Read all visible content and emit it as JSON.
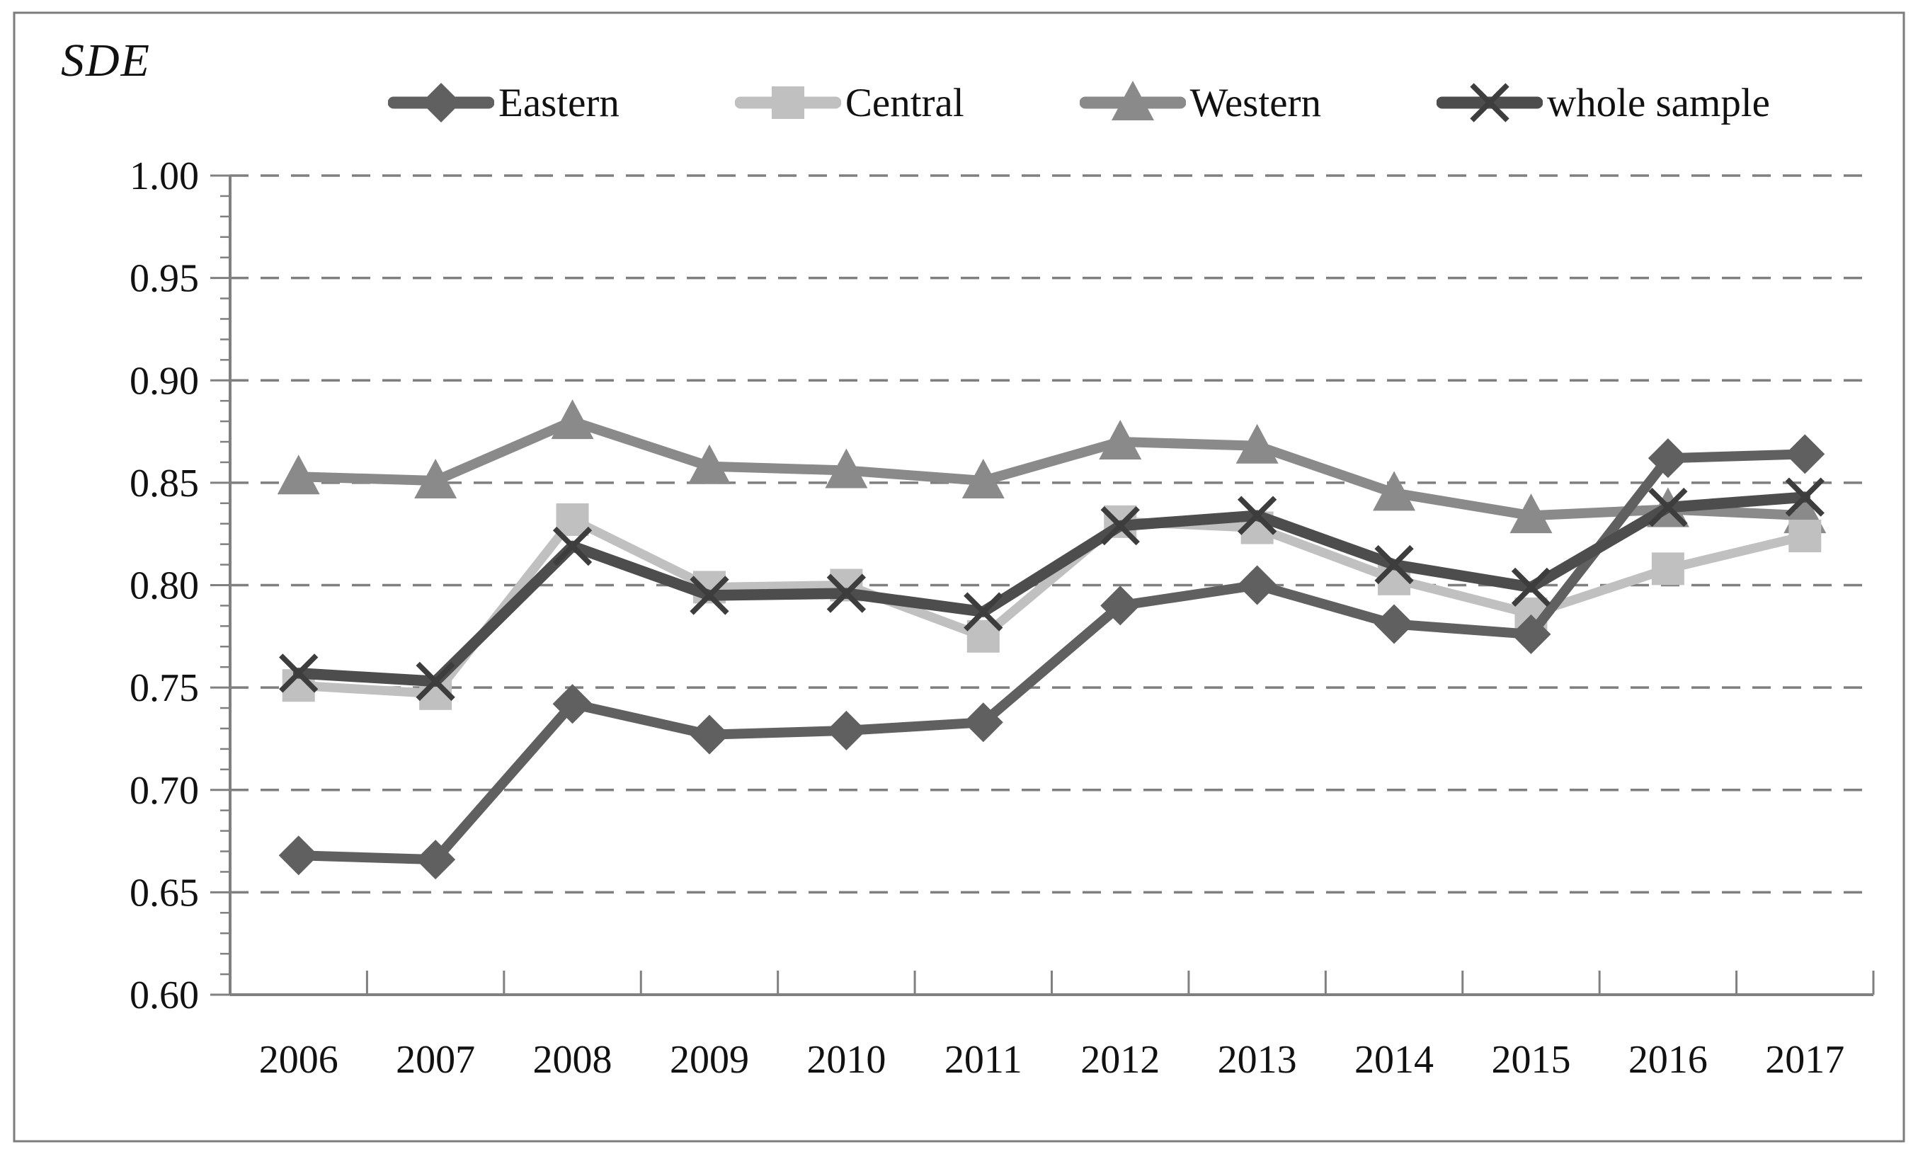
{
  "figure": {
    "axis_label": "SDE",
    "background_color": "#ffffff",
    "border_color": "#7c7c7c",
    "axis_color": "#808080",
    "gridline_color": "#7f7f7f",
    "text_color": "#111111"
  },
  "chart_data": {
    "type": "line",
    "title": "",
    "ylabel": "SDE",
    "xlabel": "",
    "x": [
      "2006",
      "2007",
      "2008",
      "2009",
      "2010",
      "2011",
      "2012",
      "2013",
      "2014",
      "2015",
      "2016",
      "2017"
    ],
    "series": [
      {
        "name": "Eastern",
        "marker": "diamond",
        "color": "#606060",
        "values": [
          0.668,
          0.666,
          0.742,
          0.727,
          0.729,
          0.733,
          0.79,
          0.8,
          0.781,
          0.776,
          0.862,
          0.864
        ]
      },
      {
        "name": "Central",
        "marker": "square",
        "color": "#c0c0c0",
        "values": [
          0.751,
          0.747,
          0.832,
          0.799,
          0.8,
          0.775,
          0.831,
          0.828,
          0.803,
          0.786,
          0.808,
          0.824
        ]
      },
      {
        "name": "Western",
        "marker": "triangle",
        "color": "#8a8a8a",
        "values": [
          0.853,
          0.851,
          0.88,
          0.858,
          0.856,
          0.851,
          0.87,
          0.868,
          0.845,
          0.834,
          0.837,
          0.834
        ]
      },
      {
        "name": "whole sample",
        "marker": "x",
        "color": "#4d4d4d",
        "values": [
          0.757,
          0.753,
          0.819,
          0.795,
          0.796,
          0.787,
          0.829,
          0.834,
          0.81,
          0.799,
          0.838,
          0.843
        ]
      }
    ],
    "ylim": [
      0.6,
      1.0
    ],
    "y_ticks": [
      "0.60",
      "0.65",
      "0.70",
      "0.75",
      "0.80",
      "0.85",
      "0.90",
      "0.95",
      "1.00"
    ],
    "y_tick_step": 0.05,
    "y_minor_tick_step": 0.01,
    "grid": "horizontal-dashed",
    "legend_position": "top",
    "draw_order": [
      "Western",
      "Central",
      "Eastern",
      "whole sample"
    ]
  },
  "legend": {
    "items": [
      {
        "label": "Eastern"
      },
      {
        "label": "Central"
      },
      {
        "label": "Western"
      },
      {
        "label": "whole sample"
      }
    ]
  }
}
